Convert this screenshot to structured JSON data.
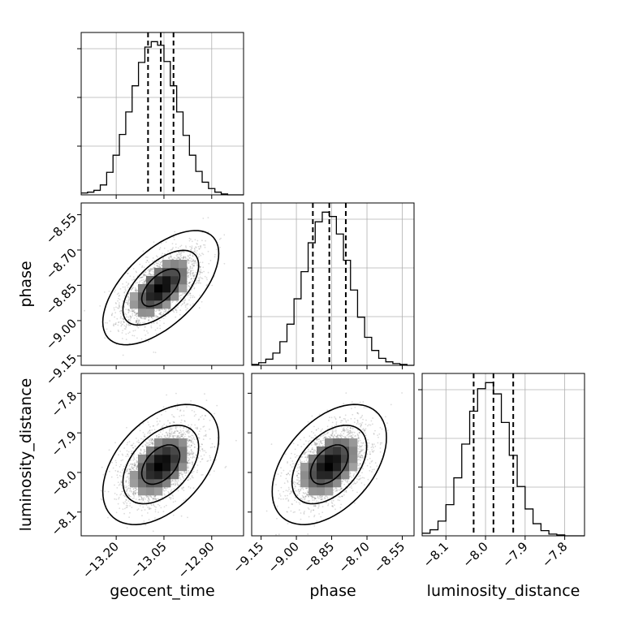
{
  "chart_data": {
    "type": "corner",
    "parameters": [
      {
        "name": "geocent_time",
        "label": "geocent_time",
        "range": [
          -13.31,
          -12.8
        ],
        "ticks": [
          -13.2,
          -13.05,
          -12.9
        ],
        "tick_labels": [
          "−13.20",
          "−13.05",
          "−12.90"
        ],
        "quantiles": [
          -13.1,
          -13.06,
          -13.02
        ],
        "center": -13.06,
        "sd": 0.06
      },
      {
        "name": "phase",
        "label": "phase",
        "range": [
          -9.19,
          -8.5
        ],
        "ticks": [
          -9.15,
          -9.0,
          -8.85,
          -8.7,
          -8.55
        ],
        "tick_labels": [
          "−9.15",
          "−9.00",
          "−8.85",
          "−8.70",
          "−8.55"
        ],
        "quantiles": [
          -8.93,
          -8.86,
          -8.79
        ],
        "center": -8.86,
        "sd": 0.08
      },
      {
        "name": "luminosity_distance",
        "label": "luminosity_distance",
        "range": [
          -8.16,
          -7.75
        ],
        "ticks": [
          -8.1,
          -8.0,
          -7.9,
          -7.8
        ],
        "tick_labels": [
          "−8.1",
          "−8.0",
          "−7.9",
          "−7.8"
        ],
        "quantiles": [
          -8.03,
          -7.98,
          -7.93
        ],
        "center": -7.98,
        "sd": 0.05
      }
    ],
    "pair_correlations": {
      "phase|geocent_time": 0.6,
      "luminosity_distance|geocent_time": 0.45,
      "luminosity_distance|phase": 0.45
    },
    "histograms": [
      {
        "parameter": "geocent_time",
        "bin_edges": [
          -13.31,
          -13.29,
          -13.27,
          -13.25,
          -13.23,
          -13.21,
          -13.19,
          -13.17,
          -13.15,
          -13.13,
          -13.11,
          -13.09,
          -13.07,
          -13.05,
          -13.03,
          -13.01,
          -12.99,
          -12.97,
          -12.95,
          -12.93,
          -12.91,
          -12.89,
          -12.87,
          -12.85,
          -12.83,
          -12.81,
          -12.8
        ],
        "counts": [
          2,
          3,
          5,
          11,
          25,
          44,
          67,
          92,
          121,
          147,
          164,
          170,
          166,
          148,
          121,
          92,
          66,
          44,
          26,
          14,
          7,
          3,
          1,
          0,
          0,
          0
        ]
      },
      {
        "parameter": "phase",
        "bin_edges": [
          -9.19,
          -9.16,
          -9.13,
          -9.1,
          -9.07,
          -9.04,
          -9.01,
          -8.98,
          -8.95,
          -8.92,
          -8.89,
          -8.86,
          -8.83,
          -8.8,
          -8.77,
          -8.74,
          -8.71,
          -8.68,
          -8.65,
          -8.62,
          -8.59,
          -8.56,
          -8.53,
          -8.5
        ],
        "counts": [
          1,
          3,
          7,
          14,
          27,
          47,
          76,
          107,
          140,
          164,
          175,
          170,
          150,
          120,
          86,
          55,
          32,
          17,
          8,
          4,
          2,
          1,
          0
        ]
      },
      {
        "parameter": "luminosity_distance",
        "bin_edges": [
          -8.16,
          -8.14,
          -8.12,
          -8.1,
          -8.08,
          -8.06,
          -8.04,
          -8.02,
          -8.0,
          -7.98,
          -7.96,
          -7.94,
          -7.92,
          -7.9,
          -7.88,
          -7.86,
          -7.84,
          -7.82,
          -7.8,
          -7.78,
          -7.75
        ],
        "counts": [
          3,
          7,
          17,
          36,
          67,
          106,
          144,
          170,
          177,
          164,
          131,
          93,
          57,
          31,
          14,
          6,
          2,
          1,
          0,
          0
        ]
      }
    ],
    "contour_levels": [
      0.39,
      0.86,
      0.99
    ],
    "grid": true
  }
}
